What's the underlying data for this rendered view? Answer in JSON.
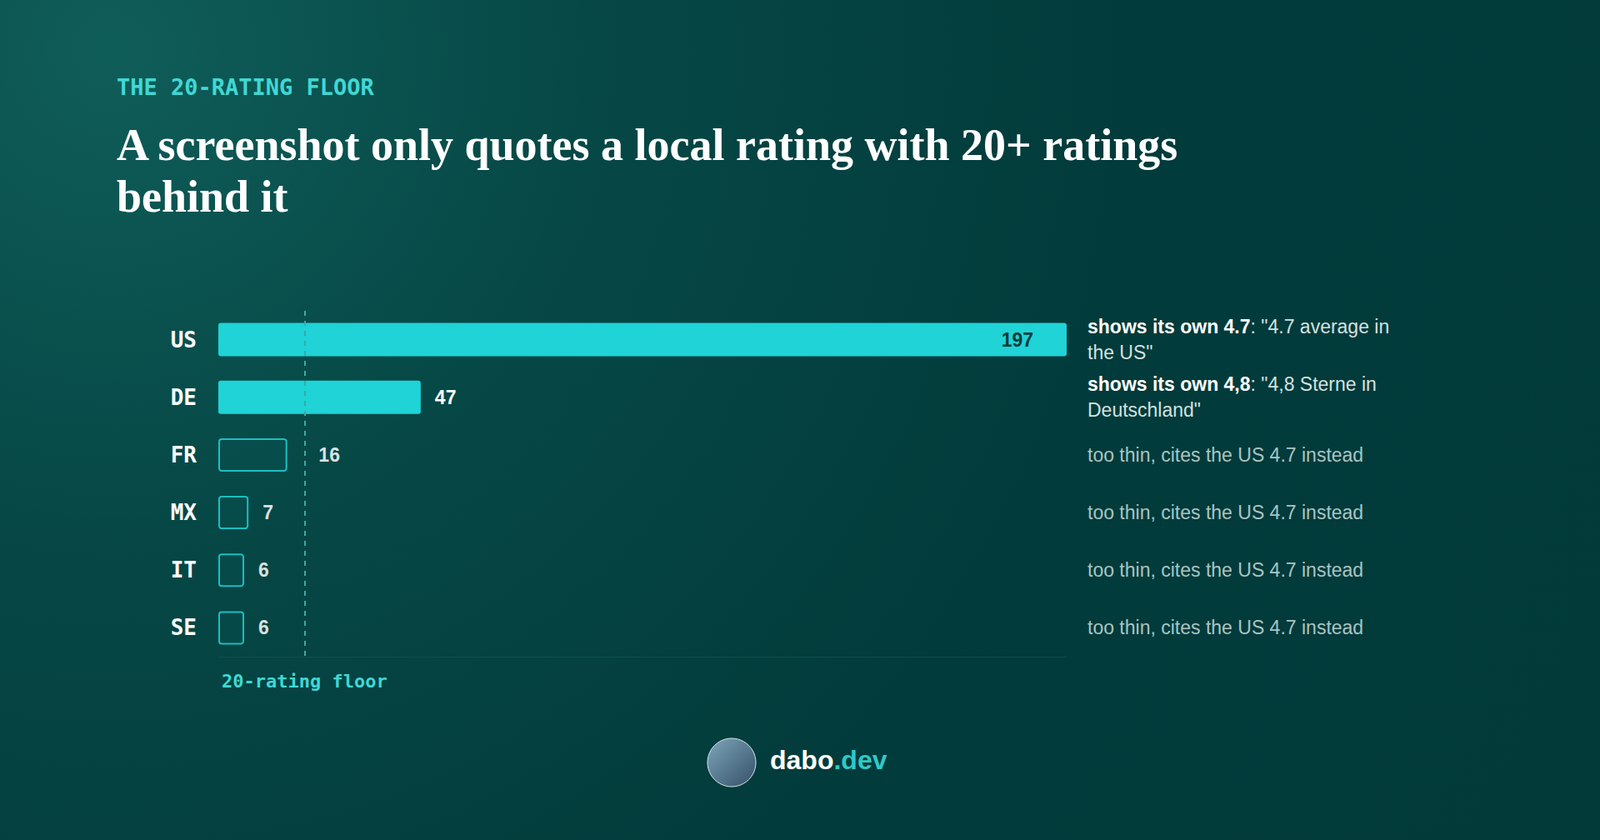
{
  "chart_data": {
    "type": "bar",
    "orientation": "horizontal",
    "subtitle": "THE 20-RATING FLOOR",
    "title": "A screenshot only quotes a local rating with 20+ ratings behind it",
    "categories": [
      "US",
      "DE",
      "FR",
      "MX",
      "IT",
      "SE"
    ],
    "values": [
      197,
      47,
      16,
      7,
      6,
      6
    ],
    "color": "#1fd3d6",
    "xlim": [
      0,
      197
    ],
    "grid": false,
    "tick_labels": "y",
    "data_labels": true,
    "threshold": {
      "value": 20,
      "label": "20-rating floor"
    },
    "annotations": [
      {
        "head": "shows its own 4.7",
        "text": ": \"4.7 average in the US\""
      },
      {
        "head": "shows its own 4,8",
        "text": ": \"4,8 Sterne in Deutschland\""
      },
      {
        "text": "too thin, cites the US 4.7 instead"
      },
      {
        "text": "too thin, cites the US 4.7 instead"
      },
      {
        "text": "too thin, cites the US 4.7 instead"
      },
      {
        "text": "too thin, cites the US 4.7 instead"
      }
    ]
  },
  "footer": "dabo.dev"
}
